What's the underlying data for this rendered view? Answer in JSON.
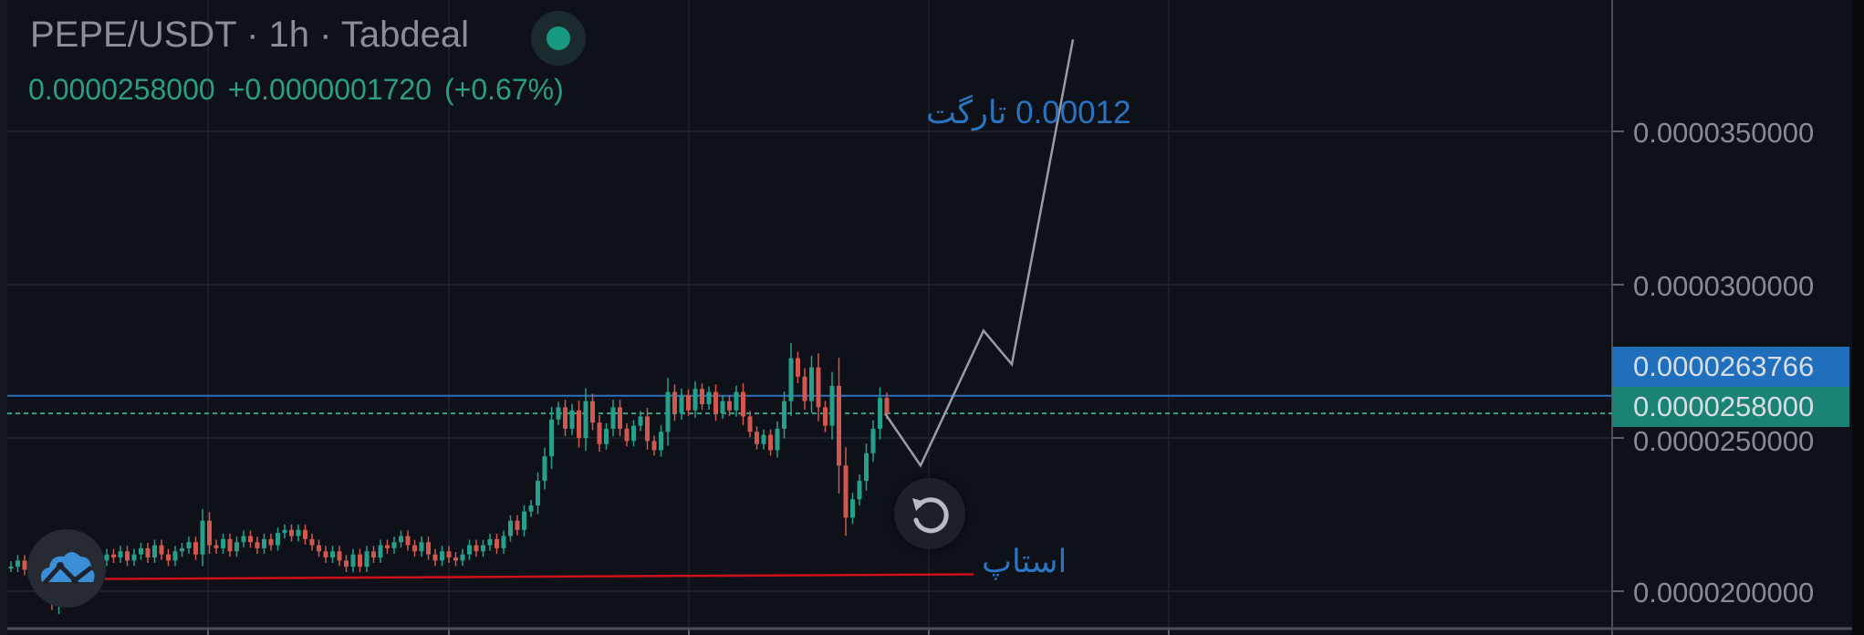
{
  "header": {
    "title": "PEPE/USDT · 1h · Tabdeal",
    "last_price": "0.0000258000",
    "change": "+0.0000001720",
    "change_pct": "(+0.67%)",
    "status_icon": "market-open-dot",
    "status_color": "#16997f"
  },
  "annotations": {
    "target_label": "0.00012 تارگت",
    "stop_label": "استاپ",
    "target_color": "#2a74c2",
    "stop_line_color": "#d0101a"
  },
  "price_tags": {
    "line_price": "0.0000263766",
    "current_price": "0.0000258000",
    "line_color": "#1f6fbd",
    "current_color": "#1b8373"
  },
  "buttons": {
    "reset_icon": "rotate-ccw-icon",
    "logo_icon": "cloud-chart-logo"
  },
  "chart_data": {
    "type": "candlestick",
    "title": "",
    "xlabel": "",
    "ylabel": "",
    "ylim": [
      1.91e-05,
      3.7e-05
    ],
    "yticks": [
      "0.0000200000",
      "0.0000250000",
      "0.0000300000",
      "0.0000350000"
    ],
    "ytick_values": [
      2e-05,
      2.5e-05,
      3e-05,
      3.5e-05
    ],
    "grid": true,
    "up_color": "#26a08a",
    "down_color": "#d0584f",
    "closes": [
      2.08e-05,
      2.1e-05,
      2.07e-05,
      2.11e-05,
      2.09e-05,
      2.02e-05,
      1.96e-05,
      2.06e-05,
      2.09e-05,
      2.1e-05,
      2.08e-05,
      2.11e-05,
      2.09e-05,
      2.1e-05,
      2.12e-05,
      2.11e-05,
      2.13e-05,
      2.1e-05,
      2.12e-05,
      2.14e-05,
      2.11e-05,
      2.15e-05,
      2.12e-05,
      2.1e-05,
      2.13e-05,
      2.14e-05,
      2.16e-05,
      2.12e-05,
      2.23e-05,
      2.15e-05,
      2.14e-05,
      2.17e-05,
      2.13e-05,
      2.16e-05,
      2.18e-05,
      2.16e-05,
      2.14e-05,
      2.17e-05,
      2.15e-05,
      2.19e-05,
      2.2e-05,
      2.18e-05,
      2.2e-05,
      2.17e-05,
      2.15e-05,
      2.13e-05,
      2.11e-05,
      2.13e-05,
      2.1e-05,
      2.08e-05,
      2.12e-05,
      2.08e-05,
      2.13e-05,
      2.11e-05,
      2.15e-05,
      2.14e-05,
      2.16e-05,
      2.18e-05,
      2.15e-05,
      2.13e-05,
      2.16e-05,
      2.12e-05,
      2.1e-05,
      2.13e-05,
      2.11e-05,
      2.1e-05,
      2.12e-05,
      2.15e-05,
      2.13e-05,
      2.15e-05,
      2.17e-05,
      2.14e-05,
      2.18e-05,
      2.23e-05,
      2.2e-05,
      2.26e-05,
      2.28e-05,
      2.36e-05,
      2.44e-05,
      2.56e-05,
      2.6e-05,
      2.53e-05,
      2.59e-05,
      2.5e-05,
      2.62e-05,
      2.55e-05,
      2.48e-05,
      2.53e-05,
      2.6e-05,
      2.53e-05,
      2.49e-05,
      2.54e-05,
      2.57e-05,
      2.49e-05,
      2.46e-05,
      2.52e-05,
      2.65e-05,
      2.58e-05,
      2.64e-05,
      2.59e-05,
      2.66e-05,
      2.61e-05,
      2.65e-05,
      2.58e-05,
      2.62e-05,
      2.59e-05,
      2.65e-05,
      2.57e-05,
      2.52e-05,
      2.48e-05,
      2.51e-05,
      2.46e-05,
      2.53e-05,
      2.62e-05,
      2.76e-05,
      2.7e-05,
      2.62e-05,
      2.73e-05,
      2.6e-05,
      2.54e-05,
      2.67e-05,
      2.41e-05,
      2.24e-05,
      2.3e-05,
      2.36e-05,
      2.45e-05,
      2.53e-05,
      2.63e-05,
      2.58e-05
    ],
    "horizontal_lines": [
      {
        "price": 2.63766e-05,
        "style": "solid",
        "color": "#2f6fb8"
      },
      {
        "price": 2.58e-05,
        "style": "dashed",
        "color": "#3aa28c"
      }
    ],
    "stop_trendline": {
      "start_price": 2.04e-05,
      "end_price": 2.055e-05
    },
    "projection_path": [
      2.58e-05,
      2.41e-05,
      2.85e-05,
      2.74e-05,
      3.8e-05
    ]
  }
}
